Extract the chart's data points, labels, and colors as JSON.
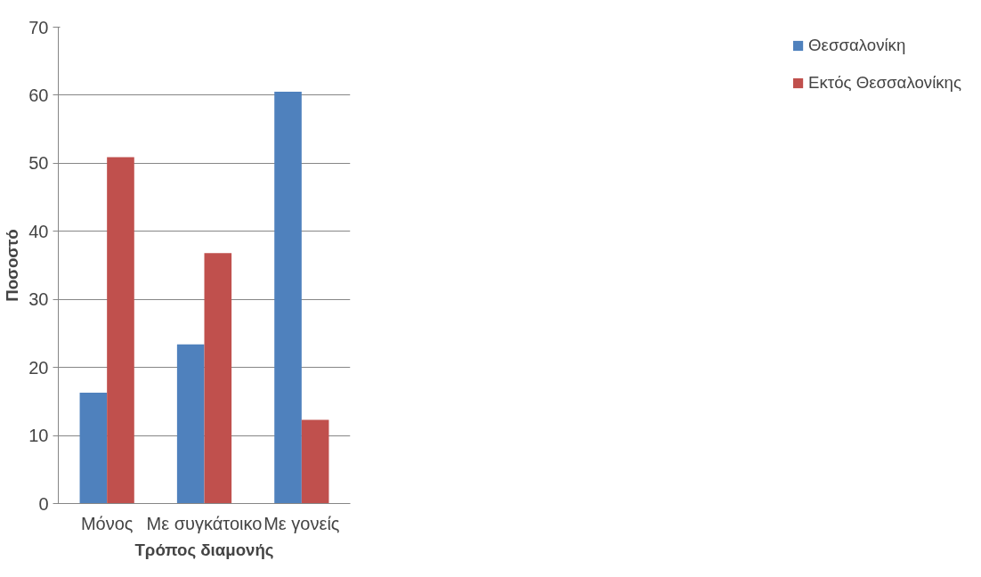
{
  "chart_data": {
    "type": "bar",
    "xlabel": "Τρόπος διαμονής",
    "ylabel": "Ποσοστό",
    "categories": [
      "Μόνος",
      "Με συγκάτοικο",
      "Με γονείς"
    ],
    "series": [
      {
        "name": "Θεσσαλονίκη",
        "color": "#4f81bd",
        "values": [
          16.3,
          23.4,
          60.5
        ]
      },
      {
        "name": "Εκτός Θεσσαλονίκης",
        "color": "#c0504d",
        "values": [
          50.9,
          36.8,
          12.3
        ]
      }
    ],
    "ylim": [
      0,
      70
    ],
    "yticks": [
      0,
      10,
      20,
      30,
      40,
      50,
      60,
      70
    ],
    "grid": "y",
    "legend": "right"
  }
}
